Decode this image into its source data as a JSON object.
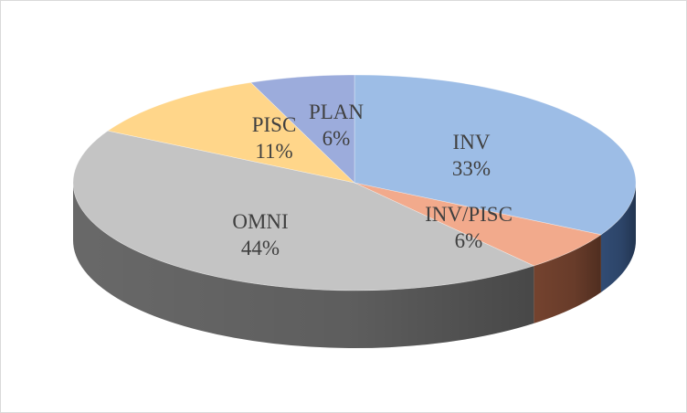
{
  "chart_data": {
    "type": "pie",
    "style": "3d",
    "title": "",
    "legend": "none",
    "slices": [
      {
        "label": "INV",
        "value": 33,
        "percent_label": "33%",
        "color": "#9dbde6",
        "side_color": "#34507a"
      },
      {
        "label": "INV/PISC",
        "value": 6,
        "percent_label": "6%",
        "color": "#f2aa8c",
        "side_color": "#7a4631"
      },
      {
        "label": "OMNI",
        "value": 44,
        "percent_label": "44%",
        "color": "#c4c4c4",
        "side_color": "#6e6e6e"
      },
      {
        "label": "PISC",
        "value": 11,
        "percent_label": "11%",
        "color": "#ffd68a",
        "side_color": "#8a6d30"
      },
      {
        "label": "PLAN",
        "value": 6,
        "percent_label": "6%",
        "color": "#9cacdc",
        "side_color": "#4b5a8a"
      }
    ]
  }
}
